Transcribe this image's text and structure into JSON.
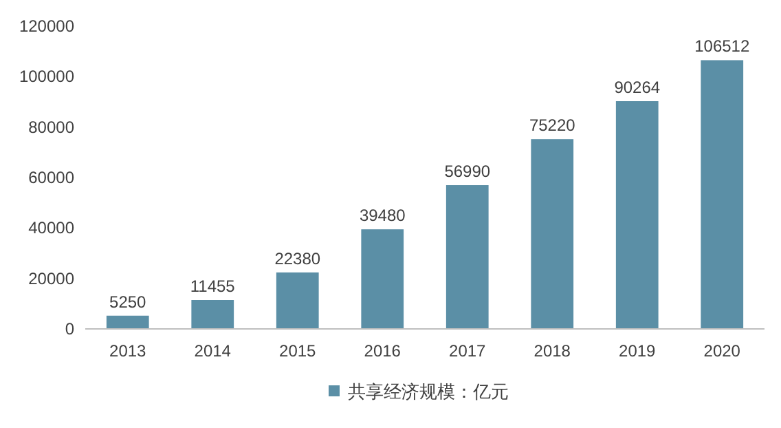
{
  "chart_data": {
    "type": "bar",
    "categories": [
      "2013",
      "2014",
      "2015",
      "2016",
      "2017",
      "2018",
      "2019",
      "2020"
    ],
    "series": [
      {
        "name": "共享经济规模：亿元",
        "color": "#5b8fa6",
        "values": [
          5250,
          11455,
          22380,
          39480,
          56990,
          75220,
          90264,
          106512
        ]
      }
    ],
    "ylim": [
      0,
      120000
    ],
    "yticks": [
      0,
      20000,
      40000,
      60000,
      80000,
      100000,
      120000
    ],
    "data_labels": true,
    "legend": "bottom",
    "grid": false
  }
}
